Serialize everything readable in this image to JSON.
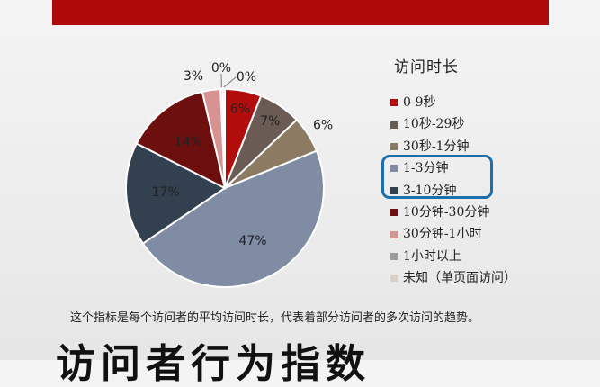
{
  "banner": {
    "color": "#b0090a"
  },
  "chart_data": {
    "type": "pie",
    "title": "",
    "legend_title": "访问时长",
    "legend_position": "right",
    "categories": [
      "0-9秒",
      "10秒-29秒",
      "30秒-1分钟",
      "1-3分钟",
      "3-10分钟",
      "10分钟-30分钟",
      "30分钟-1小时",
      "1小时以上",
      "未知（单页面访问）"
    ],
    "values": [
      6,
      7,
      6,
      47,
      17,
      14,
      3,
      0,
      0
    ],
    "labels": [
      "6%",
      "7%",
      "6%",
      "47%",
      "17%",
      "14%",
      "3%",
      "0%",
      "0%"
    ],
    "colors": [
      "#b10d0d",
      "#6b5b55",
      "#8c7b62",
      "#7f8ca3",
      "#33404f",
      "#6d0f0f",
      "#d79292",
      "#9d9d9d",
      "#d9cfc3"
    ],
    "highlighted_categories": [
      "1-3分钟",
      "3-10分钟"
    ]
  },
  "caption": "这个指标是每个访问者的平均访问时长，代表着部分访问者的多次访问的趋势。",
  "bottom_title": "访问者行为指数"
}
